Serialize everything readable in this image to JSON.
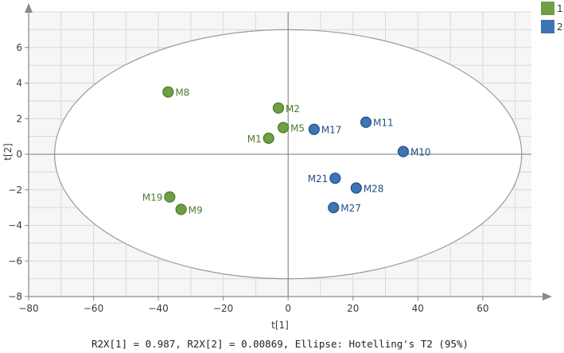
{
  "chart_data": {
    "type": "scatter",
    "xlabel": "t[1]",
    "ylabel": "t[2]",
    "xlim": [
      -80,
      75
    ],
    "ylim": [
      -8,
      8
    ],
    "xticks": [
      -80,
      -60,
      -40,
      -20,
      0,
      20,
      40,
      60
    ],
    "yticks": [
      -8,
      -6,
      -4,
      -2,
      0,
      2,
      4,
      6
    ],
    "grid": true,
    "legend_position": "top-right",
    "ellipse": {
      "rx": 72,
      "ry": 7
    },
    "footer": "R2X[1] = 0.987, R2X[2] = 0.00869, Ellipse: Hotelling's T2 (95%)",
    "series": [
      {
        "name": "1",
        "color": "#6e9e45",
        "points": [
          {
            "label": "M8",
            "x": -37,
            "y": 3.5
          },
          {
            "label": "M2",
            "x": -3,
            "y": 2.6
          },
          {
            "label": "M5",
            "x": -1.5,
            "y": 1.5
          },
          {
            "label": "M1",
            "x": -6,
            "y": 0.9
          },
          {
            "label": "M19",
            "x": -36.5,
            "y": -2.4
          },
          {
            "label": "M9",
            "x": -33,
            "y": -3.1
          }
        ]
      },
      {
        "name": "2",
        "color": "#3c74b4",
        "points": [
          {
            "label": "M17",
            "x": 8,
            "y": 1.4
          },
          {
            "label": "M11",
            "x": 24,
            "y": 1.8
          },
          {
            "label": "M10",
            "x": 35.5,
            "y": 0.15
          },
          {
            "label": "M21",
            "x": 14.5,
            "y": -1.35
          },
          {
            "label": "M28",
            "x": 21,
            "y": -1.9
          },
          {
            "label": "M27",
            "x": 14,
            "y": -3.0
          }
        ]
      }
    ]
  }
}
